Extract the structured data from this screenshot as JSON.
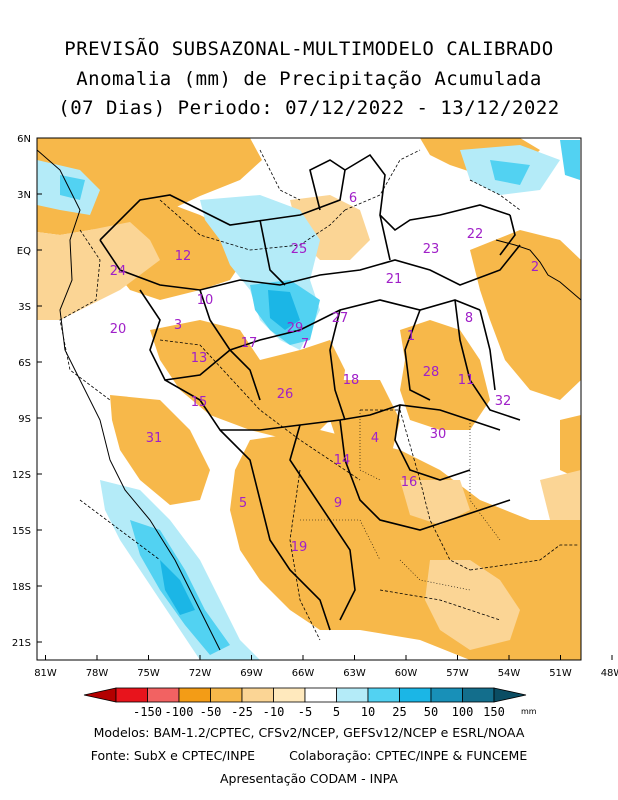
{
  "title": {
    "line1": "PREVISÃO SUBSAZONAL-MULTIMODELO CALIBRADO",
    "line2": "Anomalia (mm) de Precipitação Acumulada",
    "line3": "(07 Dias) Periodo: 07/12/2022 - 13/12/2022"
  },
  "axes": {
    "lat_labels": [
      "6N",
      "3N",
      "EQ",
      "3S",
      "6S",
      "9S",
      "12S",
      "15S",
      "18S",
      "21S"
    ],
    "lon_labels": [
      "81W",
      "78W",
      "75W",
      "72W",
      "69W",
      "66W",
      "63W",
      "60W",
      "57W",
      "54W",
      "51W",
      "48W"
    ]
  },
  "regions": [
    {
      "id": "1"
    },
    {
      "id": "2"
    },
    {
      "id": "3"
    },
    {
      "id": "4"
    },
    {
      "id": "5"
    },
    {
      "id": "6"
    },
    {
      "id": "7"
    },
    {
      "id": "8"
    },
    {
      "id": "9"
    },
    {
      "id": "10"
    },
    {
      "id": "11"
    },
    {
      "id": "12"
    },
    {
      "id": "13"
    },
    {
      "id": "14"
    },
    {
      "id": "15"
    },
    {
      "id": "16"
    },
    {
      "id": "17"
    },
    {
      "id": "18"
    },
    {
      "id": "19"
    },
    {
      "id": "20"
    },
    {
      "id": "21"
    },
    {
      "id": "22"
    },
    {
      "id": "23"
    },
    {
      "id": "24"
    },
    {
      "id": "25"
    },
    {
      "id": "26"
    },
    {
      "id": "27"
    },
    {
      "id": "28"
    },
    {
      "id": "29"
    },
    {
      "id": "30"
    },
    {
      "id": "31"
    },
    {
      "id": "32"
    }
  ],
  "colorbar": {
    "labels": [
      "-150",
      "-100",
      "-50",
      "-25",
      "-10",
      "-5",
      "5",
      "10",
      "25",
      "50",
      "100",
      "150"
    ],
    "unit": "mm",
    "colors": [
      "#b30000",
      "#e8141c",
      "#f26262",
      "#f39c16",
      "#f7b84a",
      "#fbd595",
      "#ffe9bd",
      "#ffffff",
      "#b4ebf8",
      "#52d2f2",
      "#1bb6e6",
      "#1890b8",
      "#136e8c",
      "#0b4d63"
    ]
  },
  "palette": {
    "dry_dark": "#f7b84a",
    "dry_light": "#fbd595",
    "wet_light": "#b4ebf8",
    "wet_mid": "#52d2f2",
    "wet_dark": "#1bb6e6",
    "label": "#a020c8"
  },
  "footer": {
    "models": "Modelos: BAM-1.2/CPTEC, CFSv2/NCEP, GEFSv12/NCEP e ESRL/NOAA",
    "source": "Fonte: SubX e CPTEC/INPE",
    "collab": "Colaboração: CPTEC/INPE & FUNCEME",
    "presentation": "Apresentação CODAM - INPA"
  }
}
